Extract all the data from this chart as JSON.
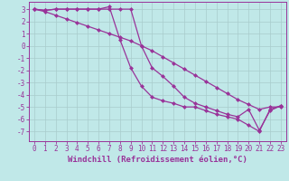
{
  "title": "",
  "xlabel": "Windchill (Refroidissement éolien,°C)",
  "ylabel": "",
  "bg_color": "#c0e8e8",
  "line_color": "#993399",
  "grid_color": "#a8cccc",
  "line1_y": [
    3.0,
    2.8,
    2.5,
    2.2,
    1.9,
    1.6,
    1.3,
    1.0,
    0.7,
    0.4,
    0.0,
    -0.4,
    -0.9,
    -1.4,
    -1.9,
    -2.4,
    -2.9,
    -3.4,
    -3.9,
    -4.4,
    -4.8,
    -5.2,
    -5.0,
    -5.0
  ],
  "line2_y": [
    3.0,
    2.9,
    3.0,
    3.0,
    3.0,
    3.0,
    3.0,
    3.0,
    3.0,
    3.0,
    0.0,
    -1.8,
    -2.5,
    -3.3,
    -4.2,
    -4.7,
    -5.0,
    -5.3,
    -5.6,
    -5.8,
    -5.2,
    -6.9,
    -5.3,
    -4.9
  ],
  "line3_y": [
    3.0,
    2.9,
    3.0,
    3.0,
    3.0,
    3.0,
    3.0,
    3.2,
    0.5,
    -1.8,
    -3.3,
    -4.2,
    -4.5,
    -4.7,
    -5.0,
    -5.0,
    -5.3,
    -5.6,
    -5.8,
    -6.0,
    -6.5,
    -7.0,
    -5.2,
    -4.9
  ],
  "xlim": [
    -0.5,
    23.5
  ],
  "ylim": [
    -7.8,
    3.6
  ],
  "xticks": [
    0,
    1,
    2,
    3,
    4,
    5,
    6,
    7,
    8,
    9,
    10,
    11,
    12,
    13,
    14,
    15,
    16,
    17,
    18,
    19,
    20,
    21,
    22,
    23
  ],
  "yticks": [
    3,
    2,
    1,
    0,
    -1,
    -2,
    -3,
    -4,
    -5,
    -6,
    -7
  ],
  "markersize": 2.5,
  "linewidth": 0.9,
  "xlabel_fontsize": 6.5,
  "tick_fontsize": 5.5
}
